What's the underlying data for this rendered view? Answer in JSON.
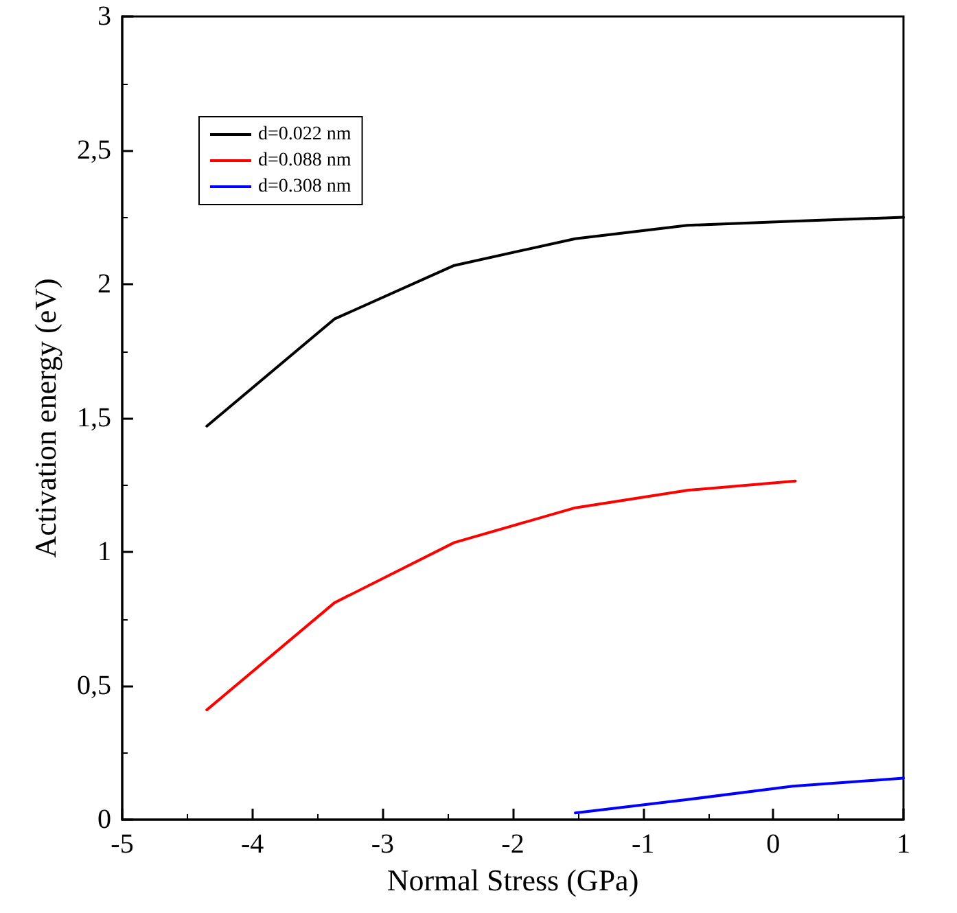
{
  "chart_data": {
    "type": "line",
    "xlabel": "Normal Stress (GPa)",
    "ylabel": "Activation energy (eV)",
    "xlim": [
      -5,
      1
    ],
    "xticks": [
      -5,
      -4,
      -3,
      -2,
      -1,
      0,
      1
    ],
    "ylim": [
      0,
      3
    ],
    "yticks": [
      0,
      {
        "value": 0.5,
        "label": "0,5"
      },
      1,
      {
        "value": 1.5,
        "label": "1,5"
      },
      2,
      {
        "value": 2.5,
        "label": "2,5"
      },
      3
    ],
    "legend": "top left",
    "grid": false,
    "marker": "none",
    "line_style": "solid",
    "series": [
      {
        "name": "d=0.022 nm",
        "color": "#000000",
        "x": [
          -4.35,
          -3.37,
          -2.45,
          -1.52,
          -0.66,
          0.15,
          1
        ],
        "values": [
          1.47,
          1.87,
          2.07,
          2.17,
          2.22,
          2.235,
          2.25
        ]
      },
      {
        "name": "d=0.088 nm",
        "color": "#ff0000",
        "x": [
          -4.35,
          -3.37,
          -2.45,
          -1.52,
          -0.66,
          0.17
        ],
        "values": [
          0.41,
          0.81,
          1.035,
          1.165,
          1.23,
          1.265
        ]
      },
      {
        "name": "d=0.308 nm",
        "color": "#0000ff",
        "x": [
          -1.52,
          -0.66,
          0.15,
          1
        ],
        "values": [
          0.025,
          0.075,
          0.125,
          0.155
        ]
      }
    ]
  }
}
